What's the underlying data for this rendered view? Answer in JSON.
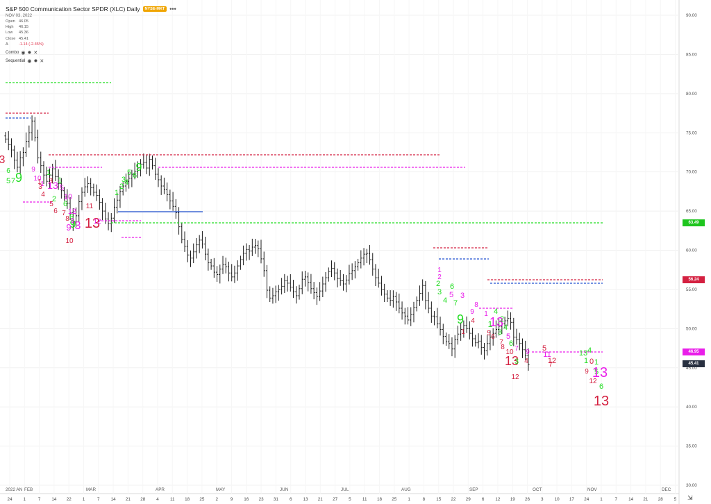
{
  "header": {
    "title": "S&P 500 Communication Sector SPDR (XLC) Daily",
    "exchange_badge": "NYSE-MKT",
    "date": "NOV 03, 2022",
    "ohlc": [
      {
        "label": "Open",
        "value": "46.05"
      },
      {
        "label": "High",
        "value": "46.15"
      },
      {
        "label": "Low",
        "value": "45.36"
      },
      {
        "label": "Close",
        "value": "45.41"
      }
    ],
    "change_label": "Δ",
    "change_value": "-1.14 (-2.45%)",
    "studies": [
      {
        "name": "Combo"
      },
      {
        "name": "Sequential"
      }
    ]
  },
  "icons": {
    "more": "more-dots-icon",
    "visibility": "eye-icon",
    "settings": "gear-icon",
    "remove": "close-icon",
    "scroll_to_end": "double-arrow-icon"
  },
  "price_tags": [
    {
      "value": "63.49",
      "color": "#1ec51e"
    },
    {
      "value": "56.24",
      "color": "#d42040"
    },
    {
      "value": "46.95",
      "color": "#e91ee9"
    },
    {
      "value": "45.41",
      "color": "#283040"
    }
  ],
  "colors": {
    "green": "#22dd22",
    "red": "#d42040",
    "magenta": "#e91ee9",
    "blue": "#2050d0",
    "bars": "#1a1a1a"
  },
  "chart_data": {
    "type": "ohlc",
    "y_axis": {
      "min": 30,
      "max": 90,
      "ticks": [
        "30.00",
        "35.00",
        "40.00",
        "45.00",
        "50.00",
        "55.00",
        "60.00",
        "65.00",
        "70.00",
        "75.00",
        "80.00",
        "85.00",
        "90.00"
      ]
    },
    "x_ticks": [
      "24",
      "1",
      "7",
      "14",
      "22",
      "1",
      "7",
      "14",
      "21",
      "28",
      "4",
      "11",
      "18",
      "25",
      "2",
      "9",
      "16",
      "23",
      "31",
      "6",
      "13",
      "21",
      "27",
      "5",
      "11",
      "18",
      "25",
      "1",
      "8",
      "15",
      "22",
      "29",
      "6",
      "12",
      "19",
      "26",
      "3",
      "10",
      "17",
      "24",
      "1",
      "7",
      "14",
      "21",
      "28",
      "5"
    ],
    "month_labels": [
      "2022 AN",
      "FEB",
      "MAR",
      "APR",
      "MAY",
      "JUN",
      "JUL",
      "AUG",
      "SEP",
      "OCT",
      "NOV",
      "DEC"
    ],
    "close_series": [
      74.2,
      73.5,
      72.8,
      71.5,
      70.6,
      71.8,
      72.5,
      73.9,
      75.0,
      76.5,
      74.4,
      71.8,
      70.8,
      69.6,
      68.8,
      69.6,
      70.4,
      69.4,
      68.5,
      67.6,
      66.8,
      66.0,
      64.8,
      63.6,
      64.4,
      66.2,
      67.4,
      68.1,
      68.5,
      68.0,
      67.4,
      67.0,
      66.1,
      65.0,
      64.0,
      63.4,
      64.1,
      65.5,
      66.4,
      67.5,
      68.2,
      68.8,
      69.2,
      69.7,
      70.1,
      70.5,
      71.0,
      71.2,
      70.5,
      71.6,
      70.8,
      69.7,
      69.0,
      68.2,
      67.8,
      67.1,
      66.3,
      65.6,
      64.8,
      63.0,
      61.4,
      60.5,
      59.4,
      59.0,
      59.8,
      60.7,
      61.3,
      60.8,
      59.5,
      58.4,
      58.0,
      57.2,
      56.9,
      57.6,
      58.2,
      57.9,
      57.1,
      56.6,
      57.1,
      58.0,
      58.8,
      59.6,
      60.1,
      59.9,
      60.4,
      60.6,
      60.2,
      58.9,
      57.4,
      54.9,
      53.9,
      54.2,
      54.7,
      55.0,
      55.4,
      56.1,
      55.8,
      55.3,
      54.7,
      54.2,
      55.1,
      56.3,
      56.6,
      55.9,
      55.1,
      54.6,
      54.1,
      54.8,
      55.7,
      56.5,
      57.3,
      57.7,
      57.1,
      56.4,
      56.1,
      55.7,
      56.2,
      57.0,
      57.4,
      57.9,
      58.4,
      59.0,
      59.5,
      59.6,
      58.8,
      57.6,
      56.5,
      55.8,
      55.0,
      54.4,
      53.9,
      53.6,
      54.1,
      53.4,
      52.6,
      52.0,
      51.6,
      51.1,
      51.8,
      52.7,
      53.6,
      54.5,
      55.5,
      53.6,
      52.6,
      51.6,
      51.5,
      50.6,
      49.9,
      49.0,
      48.3,
      48.1,
      47.4,
      48.6,
      49.3,
      49.9,
      50.4,
      50.0,
      49.4,
      48.7,
      48.2,
      48.4,
      47.6,
      47.2,
      48.1,
      48.9,
      49.4,
      49.9,
      50.3,
      50.6,
      51.0,
      51.3,
      50.8,
      48.9,
      48.6,
      48.1,
      47.3,
      46.55,
      45.41
    ]
  }
}
